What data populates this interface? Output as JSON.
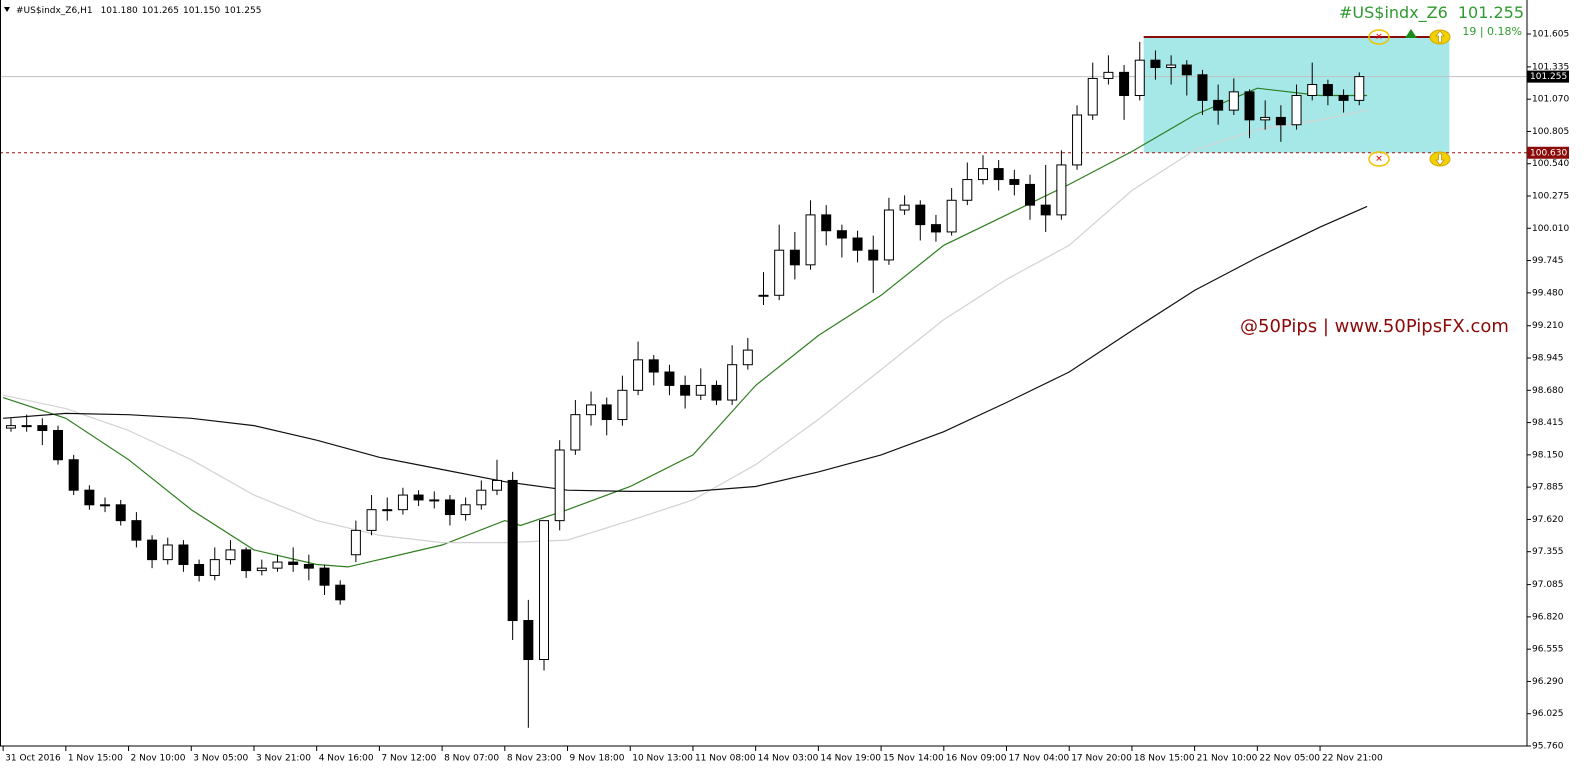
{
  "chart_data": {
    "type": "candlestick",
    "title": "#US$indx_Z6,H1",
    "quote": [
      {
        "value": 101.18,
        "label": "101.180"
      },
      {
        "value": 101.265,
        "label": "101.265"
      },
      {
        "value": 101.15,
        "label": "101.150"
      },
      {
        "value": 101.255,
        "label": "101.255"
      }
    ],
    "symbol_name": "#US$indx_Z6",
    "bid": {
      "value": 101.255,
      "label": "101.255"
    },
    "change": "19 | 0.18%",
    "watermark": "@50Pips | www.50PipsFX.com",
    "xlim": [
      -0.8,
      388.8
    ],
    "ylim": [
      95.76,
      101.884
    ],
    "xticks": [
      {
        "value": 0,
        "label": "31 Oct 2016"
      },
      {
        "value": 16,
        "label": "1 Nov 15:00"
      },
      {
        "value": 32,
        "label": "2 Nov 10:00"
      },
      {
        "value": 48,
        "label": "3 Nov 05:00"
      },
      {
        "value": 64,
        "label": "3 Nov 21:00"
      },
      {
        "value": 80,
        "label": "4 Nov 16:00"
      },
      {
        "value": 96,
        "label": "7 Nov 12:00"
      },
      {
        "value": 112,
        "label": "8 Nov 07:00"
      },
      {
        "value": 128,
        "label": "8 Nov 23:00"
      },
      {
        "value": 144,
        "label": "9 Nov 18:00"
      },
      {
        "value": 160,
        "label": "10 Nov 13:00"
      },
      {
        "value": 176,
        "label": "11 Nov 08:00"
      },
      {
        "value": 192,
        "label": "14 Nov 03:00"
      },
      {
        "value": 208,
        "label": "14 Nov 19:00"
      },
      {
        "value": 224,
        "label": "15 Nov 14:00"
      },
      {
        "value": 240,
        "label": "16 Nov 09:00"
      },
      {
        "value": 256,
        "label": "17 Nov 04:00"
      },
      {
        "value": 272,
        "label": "17 Nov 20:00"
      },
      {
        "value": 288,
        "label": "18 Nov 15:00"
      },
      {
        "value": 304,
        "label": "21 Nov 10:00"
      },
      {
        "value": 320,
        "label": "22 Nov 05:00"
      },
      {
        "value": 336,
        "label": "22 Nov 21:00"
      }
    ],
    "yticks": [
      101.605,
      101.335,
      {
        "value": 101.07,
        "label": "101.070"
      },
      100.805,
      {
        "value": 100.54,
        "label": "100.540"
      },
      100.275,
      {
        "value": 100.01,
        "label": "100.010"
      },
      99.745,
      {
        "value": 99.48,
        "label": "99.480"
      },
      {
        "value": 99.21,
        "label": "99.210"
      },
      98.945,
      {
        "value": 98.68,
        "label": "98.680"
      },
      98.415,
      {
        "value": 98.15,
        "label": "98.150"
      },
      97.885,
      {
        "value": 97.62,
        "label": "97.620"
      },
      97.355,
      97.085,
      {
        "value": 96.82,
        "label": "96.820"
      },
      96.555,
      {
        "value": 96.29,
        "label": "96.290"
      },
      96.025,
      {
        "value": 95.76,
        "label": "95.760"
      }
    ],
    "up_color": "#ffffff",
    "down_color": "#000000",
    "candles": {
      "x": [
        2,
        6,
        10,
        14,
        18,
        22,
        26,
        30,
        34,
        38,
        42,
        46,
        50,
        54,
        58,
        62,
        66,
        70,
        74,
        78,
        82,
        86,
        90,
        94,
        98,
        102,
        106,
        110,
        114,
        118,
        122,
        126,
        130,
        134,
        138,
        142,
        146,
        150,
        154,
        158,
        162,
        166,
        170,
        174,
        178,
        182,
        186,
        190,
        194,
        198,
        202,
        206,
        210,
        214,
        218,
        222,
        226,
        230,
        234,
        238,
        242,
        246,
        250,
        254,
        258,
        262,
        266,
        270,
        274,
        278,
        282,
        286,
        290,
        294,
        298,
        302,
        306,
        310,
        314,
        318,
        322,
        326,
        330,
        334,
        338,
        342,
        346
      ],
      "open": [
        98.37,
        98.39,
        98.39,
        98.35,
        98.11,
        97.86,
        97.74,
        97.74,
        97.61,
        97.45,
        97.29,
        97.41,
        97.25,
        97.16,
        97.29,
        97.37,
        97.2,
        97.22,
        97.27,
        97.25,
        97.22,
        97.08,
        97.33,
        97.53,
        97.7,
        97.7,
        97.82,
        97.78,
        97.78,
        97.66,
        97.74,
        97.86,
        97.94,
        96.79,
        96.47,
        97.61,
        98.19,
        98.48,
        98.56,
        98.44,
        98.68,
        98.93,
        98.83,
        98.72,
        98.64,
        98.72,
        98.6,
        98.89,
        99.46,
        99.46,
        99.83,
        99.71,
        100.12,
        99.99,
        99.93,
        99.83,
        99.75,
        100.16,
        100.2,
        100.04,
        99.98,
        100.24,
        100.41,
        100.5,
        100.41,
        100.37,
        100.2,
        100.12,
        100.53,
        100.94,
        101.24,
        101.29,
        101.1,
        101.39,
        101.33,
        101.35,
        101.27,
        101.06,
        100.98,
        101.13,
        100.9,
        100.92,
        100.86,
        101.1,
        101.19,
        101.1,
        101.06
      ],
      "high": [
        98.45,
        98.48,
        98.45,
        98.39,
        98.15,
        97.9,
        97.8,
        97.78,
        97.68,
        97.49,
        97.47,
        97.45,
        97.29,
        97.39,
        97.45,
        97.39,
        97.29,
        97.33,
        97.39,
        97.33,
        97.25,
        97.12,
        97.61,
        97.82,
        97.8,
        97.88,
        97.86,
        97.85,
        97.82,
        97.8,
        97.94,
        98.11,
        98.01,
        96.96,
        97.61,
        98.27,
        98.6,
        98.67,
        98.62,
        98.8,
        99.08,
        98.97,
        98.89,
        98.8,
        98.86,
        98.76,
        99.05,
        99.11,
        99.65,
        100.04,
        99.98,
        100.24,
        100.2,
        100.04,
        99.99,
        99.95,
        100.26,
        100.28,
        100.24,
        100.12,
        100.34,
        100.55,
        100.61,
        100.57,
        100.49,
        100.45,
        100.53,
        100.65,
        101.02,
        101.37,
        101.43,
        101.35,
        101.54,
        101.47,
        101.43,
        101.39,
        101.31,
        101.19,
        101.24,
        101.15,
        101.06,
        101.02,
        101.19,
        101.37,
        101.23,
        101.15,
        101.29
      ],
      "low": [
        98.34,
        98.34,
        98.23,
        98.07,
        97.82,
        97.7,
        97.68,
        97.57,
        97.39,
        97.22,
        97.25,
        97.19,
        97.11,
        97.12,
        97.25,
        97.14,
        97.16,
        97.19,
        97.19,
        97.12,
        97.0,
        96.92,
        97.27,
        97.49,
        97.61,
        97.66,
        97.73,
        97.71,
        97.57,
        97.61,
        97.7,
        97.82,
        96.63,
        95.91,
        96.38,
        97.53,
        98.15,
        98.39,
        98.31,
        98.39,
        98.64,
        98.72,
        98.64,
        98.53,
        98.6,
        98.56,
        98.56,
        98.85,
        99.38,
        99.42,
        99.59,
        99.67,
        99.87,
        99.77,
        99.73,
        99.48,
        99.71,
        100.12,
        99.91,
        99.9,
        99.95,
        100.2,
        100.37,
        100.32,
        100.28,
        100.08,
        99.98,
        100.08,
        100.49,
        100.9,
        101.19,
        100.9,
        101.06,
        101.23,
        101.19,
        101.1,
        100.94,
        100.86,
        100.94,
        100.75,
        100.82,
        100.72,
        100.82,
        101.06,
        101.02,
        100.96,
        101.02
      ],
      "close": [
        98.39,
        98.39,
        98.35,
        98.11,
        97.86,
        97.74,
        97.74,
        97.61,
        97.45,
        97.29,
        97.41,
        97.25,
        97.16,
        97.29,
        97.37,
        97.2,
        97.22,
        97.27,
        97.25,
        97.22,
        97.08,
        96.96,
        97.53,
        97.7,
        97.7,
        97.82,
        97.78,
        97.78,
        97.66,
        97.74,
        97.86,
        97.94,
        96.79,
        96.47,
        97.61,
        98.19,
        98.48,
        98.56,
        98.44,
        98.68,
        98.93,
        98.83,
        98.72,
        98.64,
        98.72,
        98.6,
        98.89,
        99.01,
        99.46,
        99.83,
        99.71,
        100.12,
        99.99,
        99.93,
        99.83,
        99.75,
        100.16,
        100.2,
        100.04,
        99.98,
        100.24,
        100.41,
        100.5,
        100.41,
        100.37,
        100.2,
        100.12,
        100.53,
        100.94,
        101.24,
        101.29,
        101.1,
        101.39,
        101.33,
        101.35,
        101.27,
        101.06,
        100.98,
        101.13,
        100.9,
        100.92,
        100.86,
        101.1,
        101.19,
        101.1,
        101.06,
        101.255
      ]
    },
    "series": [
      {
        "color": "#2f7d1f",
        "x": [
          0,
          16,
          32,
          48,
          64,
          80,
          88,
          96,
          112,
          128,
          132,
          144,
          160,
          176,
          192,
          208,
          224,
          240,
          256,
          272,
          288,
          304,
          320,
          336,
          348
        ],
        "values": [
          98.62,
          98.45,
          98.11,
          97.7,
          97.37,
          97.25,
          97.23,
          97.29,
          97.41,
          97.61,
          97.57,
          97.7,
          97.89,
          98.15,
          98.72,
          99.13,
          99.46,
          99.87,
          100.12,
          100.37,
          100.64,
          100.94,
          101.16,
          101.1,
          101.1
        ]
      },
      {
        "color": "#d2d2d2",
        "x": [
          0,
          16,
          32,
          48,
          64,
          80,
          96,
          112,
          128,
          144,
          160,
          176,
          192,
          208,
          224,
          240,
          256,
          272,
          288,
          304,
          320,
          336,
          348
        ],
        "values": [
          98.64,
          98.53,
          98.35,
          98.11,
          97.82,
          97.61,
          97.49,
          97.43,
          97.43,
          97.45,
          97.61,
          97.78,
          98.07,
          98.44,
          98.85,
          99.26,
          99.59,
          99.87,
          100.32,
          100.65,
          100.82,
          100.9,
          100.98
        ]
      },
      {
        "color": "#111111",
        "x": [
          0,
          16,
          32,
          48,
          64,
          80,
          96,
          112,
          128,
          144,
          160,
          176,
          192,
          208,
          224,
          240,
          256,
          272,
          288,
          304,
          320,
          336,
          348
        ],
        "values": [
          98.45,
          98.49,
          98.48,
          98.45,
          98.39,
          98.27,
          98.13,
          98.03,
          97.93,
          97.86,
          97.85,
          97.85,
          97.89,
          98.01,
          98.15,
          98.34,
          98.58,
          98.83,
          99.17,
          99.5,
          99.77,
          100.02,
          100.19
        ]
      }
    ],
    "price_line": {
      "value": 101.255,
      "label": "101.255"
    },
    "level_line": {
      "value": 100.63,
      "label": "100.630"
    },
    "zone": {
      "x": [
        291,
        369
      ],
      "y": [
        100.63,
        101.58
      ],
      "color": "#a6e8e8"
    }
  }
}
